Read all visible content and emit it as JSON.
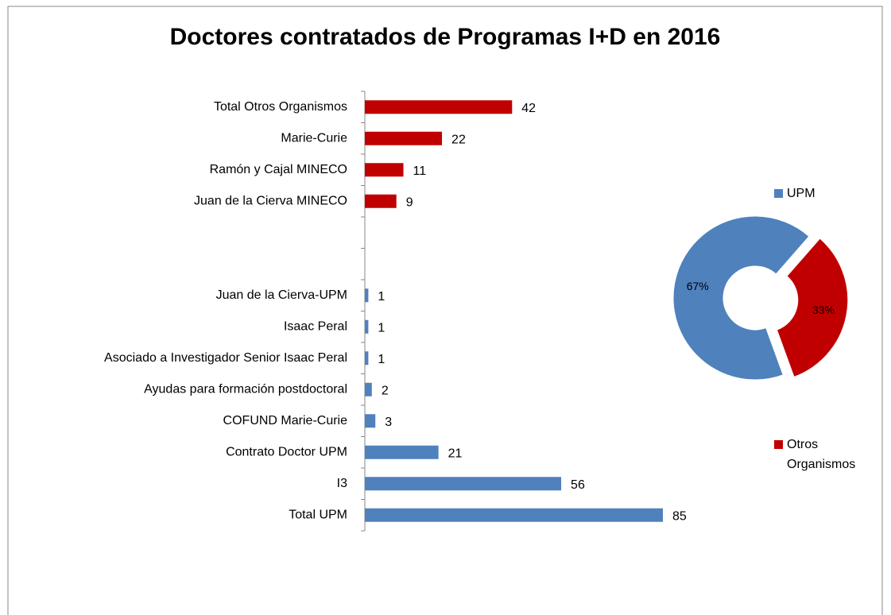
{
  "chart_data": [
    {
      "type": "bar",
      "orientation": "horizontal",
      "title": "Doctores contratados de Programas I+D en 2016",
      "categories": [
        "Total Otros Organismos",
        "Marie-Curie",
        "Ramón y Cajal MINECO",
        "Juan de la Cierva MINECO",
        null,
        null,
        "Juan de la Cierva-UPM",
        "Isaac Peral",
        "Asociado a Investigador Senior Isaac Peral",
        "Ayudas para formación postdoctoral",
        "COFUND Marie-Curie",
        "Contrato Doctor UPM",
        "I3",
        "Total UPM"
      ],
      "values": [
        42,
        22,
        11,
        9,
        null,
        null,
        1,
        1,
        1,
        2,
        3,
        21,
        56,
        85
      ],
      "colors": [
        "#c00000",
        "#c00000",
        "#c00000",
        "#c00000",
        null,
        null,
        "#4f81bd",
        "#4f81bd",
        "#4f81bd",
        "#4f81bd",
        "#4f81bd",
        "#4f81bd",
        "#4f81bd",
        "#4f81bd"
      ]
    },
    {
      "type": "pie",
      "donut": true,
      "categories": [
        "UPM",
        "Otros Organismos"
      ],
      "values": [
        67,
        33
      ],
      "value_labels": [
        "67%",
        "33%"
      ],
      "colors": [
        "#4f81bd",
        "#c00000"
      ]
    }
  ]
}
